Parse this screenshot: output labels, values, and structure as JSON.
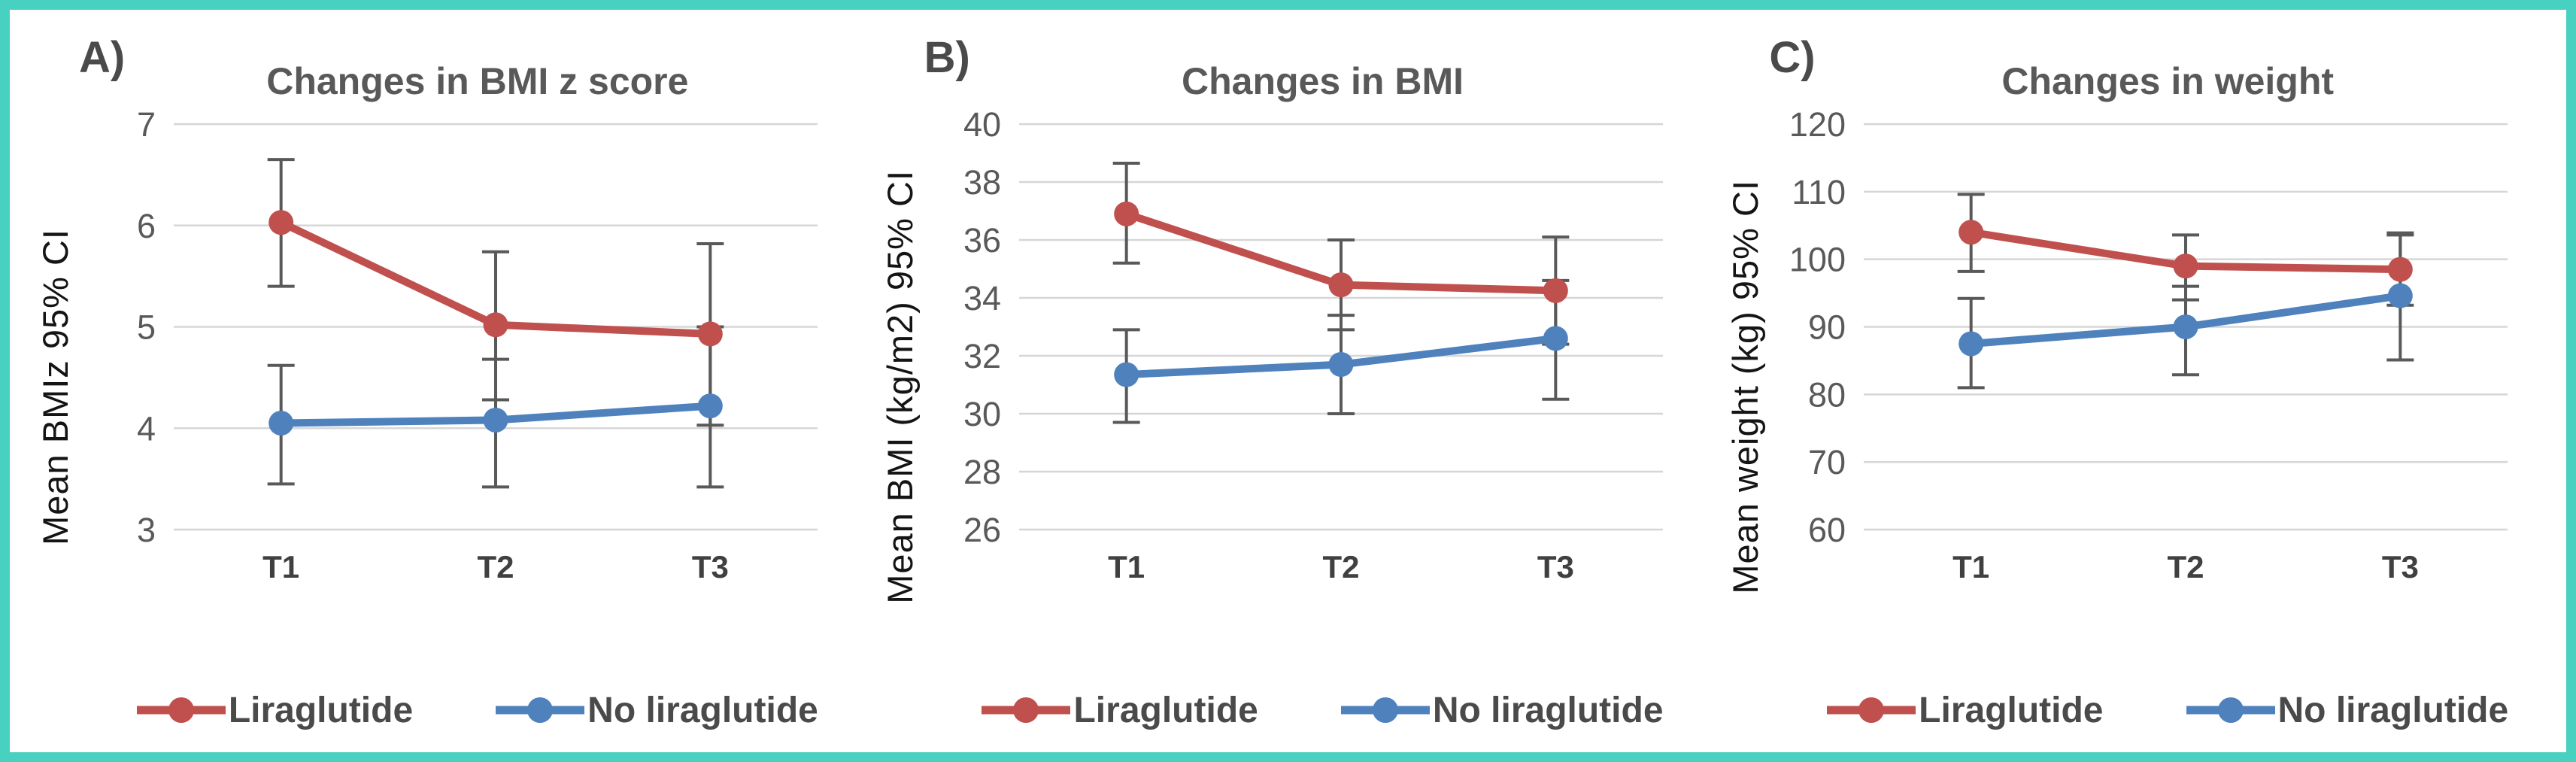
{
  "figure": {
    "border_color": "#48D1C0",
    "background": "#FFFFFF",
    "gridline_color": "#D6D6D6",
    "error_bar_color": "#595959",
    "title_color": "#595959",
    "text_color": "#4a4a4a"
  },
  "legend": {
    "items": [
      {
        "label": "Liraglutide",
        "color": "#C0504D",
        "marker": "circle-on-line"
      },
      {
        "label": "No liraglutide",
        "color": "#4F81BD",
        "marker": "circle-on-line"
      }
    ]
  },
  "chart_data": [
    {
      "type": "line",
      "panel_label": "A)",
      "title": "Changes in BMI z score",
      "xlabel": "",
      "ylabel": "Mean BMIz 95% CI",
      "categories": [
        "T1",
        "T2",
        "T3"
      ],
      "ylim": [
        3,
        7
      ],
      "yticks": [
        3,
        4,
        5,
        6,
        7
      ],
      "grid": true,
      "error_bars": "95% CI",
      "legend_position": "bottom",
      "series": [
        {
          "name": "Liraglutide",
          "color": "#C0504D",
          "values": [
            6.03,
            5.02,
            4.93
          ],
          "ci_low": [
            5.4,
            4.28,
            4.03
          ],
          "ci_high": [
            6.65,
            5.74,
            5.82
          ]
        },
        {
          "name": "No liraglutide",
          "color": "#4F81BD",
          "values": [
            4.05,
            4.08,
            4.22
          ],
          "ci_low": [
            3.45,
            3.42,
            3.42
          ],
          "ci_high": [
            4.62,
            4.68,
            5.0
          ]
        }
      ]
    },
    {
      "type": "line",
      "panel_label": "B)",
      "title": "Changes in BMI",
      "xlabel": "",
      "ylabel": "Mean BMI (kg/m2) 95% CI",
      "categories": [
        "T1",
        "T2",
        "T3"
      ],
      "ylim": [
        26,
        40
      ],
      "yticks": [
        26,
        28,
        30,
        32,
        34,
        36,
        38,
        40
      ],
      "grid": true,
      "error_bars": "95% CI",
      "legend_position": "bottom",
      "series": [
        {
          "name": "Liraglutide",
          "color": "#C0504D",
          "values": [
            36.9,
            34.45,
            34.25
          ],
          "ci_low": [
            35.2,
            32.9,
            32.4
          ],
          "ci_high": [
            38.65,
            36.0,
            36.1
          ]
        },
        {
          "name": "No liraglutide",
          "color": "#4F81BD",
          "values": [
            31.35,
            31.7,
            32.6
          ],
          "ci_low": [
            29.7,
            30.0,
            30.5
          ],
          "ci_high": [
            32.9,
            33.4,
            34.6
          ]
        }
      ]
    },
    {
      "type": "line",
      "panel_label": "C)",
      "title": "Changes in weight",
      "xlabel": "",
      "ylabel": "Mean weight (kg) 95% CI",
      "categories": [
        "T1",
        "T2",
        "T3"
      ],
      "ylim": [
        60,
        120
      ],
      "yticks": [
        60,
        70,
        80,
        90,
        100,
        110,
        120
      ],
      "grid": true,
      "error_bars": "95% CI",
      "legend_position": "bottom",
      "series": [
        {
          "name": "Liraglutide",
          "color": "#C0504D",
          "values": [
            104.0,
            99.0,
            98.5
          ],
          "ci_low": [
            98.2,
            94.0,
            93.2
          ],
          "ci_high": [
            109.6,
            103.6,
            103.6
          ]
        },
        {
          "name": "No liraglutide",
          "color": "#4F81BD",
          "values": [
            87.5,
            90.0,
            94.6
          ],
          "ci_low": [
            81.0,
            82.9,
            85.1
          ],
          "ci_high": [
            94.2,
            96.0,
            103.9
          ]
        }
      ]
    }
  ]
}
